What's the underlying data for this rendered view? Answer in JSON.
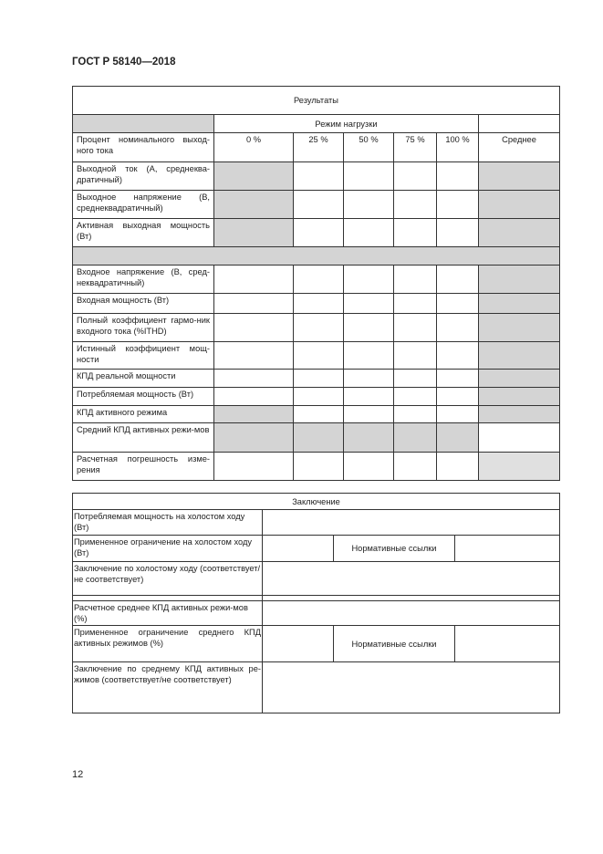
{
  "header": "ГОСТ Р 58140—2018",
  "page_number": "12",
  "results": {
    "title": "Результаты",
    "load_mode": "Режим нагрузки",
    "percent_label": "Процент номинального выход-ного тока",
    "columns": [
      "0 %",
      "25 %",
      "50 %",
      "75 %",
      "100 %"
    ],
    "average": "Среднее",
    "output_rows": [
      "Выходной ток (А, среднеква-дратичный)",
      "Выходное напряжение (В, среднеквадратичный)",
      "Активная выходная мощность (Вт)"
    ],
    "input_rows": [
      "Входное напряжение (В, сред-неквадратичный)",
      "Входная мощность (Вт)",
      "Полный коэффициент гармо-ник входного тока (%ITHD)",
      "Истинный коэффициент мощ-ности",
      "КПД реальной мощности",
      "Потребляемая мощность (Вт)"
    ],
    "active_mode": "КПД активного режима",
    "avg_active": "Средний КПД активных режи-мов",
    "error": "Расчетная погрешность изме-рения"
  },
  "conclusion": {
    "title": "Заключение",
    "noload_power": "Потребляемая мощность на холостом ходу (Вт)",
    "noload_limit": "Примененное ограничение на холостом ходу (Вт)",
    "refs": "Нормативные ссылки",
    "noload_conclusion": "Заключение по холостому ходу (соответствует/не соответствует)",
    "calc_avg": "Расчетное среднее КПД активных режи-мов (%)",
    "avg_limit": "Примененное ограничение среднего КПД активных режимов (%)",
    "avg_conclusion": "Заключение по среднему КПД активных ре-жимов (соответствует/не соответствует)"
  }
}
